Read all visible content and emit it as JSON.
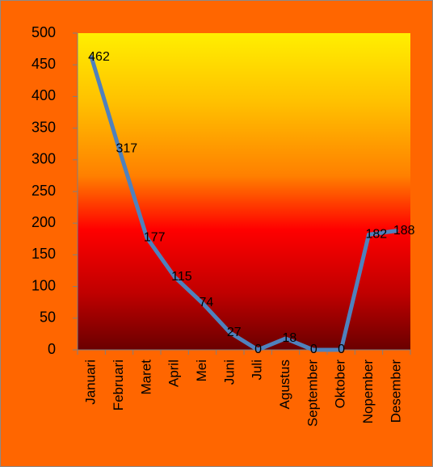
{
  "chart_data": {
    "type": "line",
    "title": "",
    "xlabel": "",
    "ylabel": "",
    "categories": [
      "Januari",
      "Februari",
      "Maret",
      "April",
      "Mei",
      "Juni",
      "Juli",
      "Agustus",
      "September",
      "Oktober",
      "Nopember",
      "Desember"
    ],
    "series": [
      {
        "values": [
          462,
          317,
          177,
          115,
          74,
          27,
          0,
          18,
          0,
          0,
          182,
          188
        ],
        "color": "#4f81bd",
        "data_labels": [
          "462",
          "317",
          "177",
          "115",
          "74",
          "27",
          "0",
          "18",
          "0",
          "0",
          "182",
          "188"
        ]
      }
    ],
    "ylim": [
      0,
      500
    ],
    "yticks": [
      0,
      50,
      100,
      150,
      200,
      250,
      300,
      350,
      400,
      450,
      500
    ],
    "grid": false,
    "legend": false
  },
  "colors": {
    "outer_background": "#ff6600",
    "plot_gradient": [
      "#ffef00",
      "#ffc000",
      "#ff8000",
      "#ff0000",
      "#c00000",
      "#6a0000"
    ],
    "line": "#4f81bd",
    "axis": "#7f7f7f"
  }
}
